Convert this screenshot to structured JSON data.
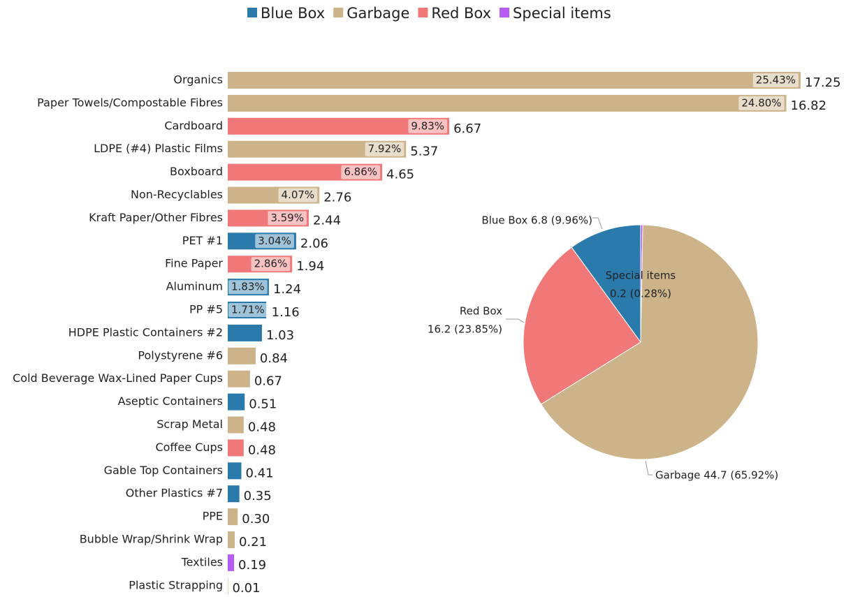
{
  "legend": [
    {
      "name": "Blue Box",
      "color": "#2a7aab"
    },
    {
      "name": "Garbage",
      "color": "#ccb38a"
    },
    {
      "name": "Red Box",
      "color": "#f07878"
    },
    {
      "name": "Special items",
      "color": "#b65cf5"
    }
  ],
  "chart_data": [
    {
      "type": "bar",
      "orientation": "horizontal",
      "categories": [
        "Organics",
        "Paper Towels/Compostable Fibres",
        "Cardboard",
        "LDPE (#4) Plastic Films",
        "Boxboard",
        "Non-Recyclables",
        "Kraft Paper/Other Fibres",
        "PET #1",
        "Fine Paper",
        "Aluminum",
        "PP #5",
        "HDPE Plastic Containers #2",
        "Polystyrene #6",
        "Cold Beverage Wax-Lined Paper Cups",
        "Aseptic Containers",
        "Scrap Metal",
        "Coffee Cups",
        "Gable Top Containers",
        "Other Plastics #7",
        "PPE",
        "Bubble Wrap/Shrink Wrap",
        "Textiles",
        "Plastic Strapping"
      ],
      "values": [
        17.25,
        16.82,
        6.67,
        5.37,
        4.65,
        2.76,
        2.44,
        2.06,
        1.94,
        1.24,
        1.16,
        1.03,
        0.84,
        0.67,
        0.51,
        0.48,
        0.48,
        0.41,
        0.35,
        0.3,
        0.21,
        0.19,
        0.01
      ],
      "value_labels": [
        "17.25",
        "16.82",
        "6.67",
        "5.37",
        "4.65",
        "2.76",
        "2.44",
        "2.06",
        "1.94",
        "1.24",
        "1.16",
        "1.03",
        "0.84",
        "0.67",
        "0.51",
        "0.48",
        "0.48",
        "0.41",
        "0.35",
        "0.30",
        "0.21",
        "0.19",
        "0.01"
      ],
      "share_labels": [
        "25.43%",
        "24.80%",
        "9.83%",
        "7.92%",
        "6.86%",
        "4.07%",
        "3.59%",
        "3.04%",
        "2.86%",
        "1.83%",
        "1.71%",
        null,
        null,
        null,
        null,
        null,
        null,
        null,
        null,
        null,
        null,
        null,
        null
      ],
      "colors": [
        "#ccb38a",
        "#ccb38a",
        "#f07878",
        "#ccb38a",
        "#f07878",
        "#ccb38a",
        "#f07878",
        "#2a7aab",
        "#f07878",
        "#2a7aab",
        "#2a7aab",
        "#2a7aab",
        "#ccb38a",
        "#ccb38a",
        "#2a7aab",
        "#ccb38a",
        "#f07878",
        "#2a7aab",
        "#2a7aab",
        "#ccb38a",
        "#ccb38a",
        "#b65cf5",
        "#ccb38a"
      ],
      "xlim": [
        0,
        17.25
      ]
    },
    {
      "type": "pie",
      "categories": [
        "Blue Box",
        "Special items",
        "Garbage",
        "Red Box"
      ],
      "values": [
        6.8,
        0.2,
        44.7,
        16.2
      ],
      "labels": [
        [
          "Blue Box 6.8 (9.96%)"
        ],
        [
          "Special items",
          "0.2 (0.28%)"
        ],
        [
          "Garbage 44.7 (65.92%)"
        ],
        [
          "Red Box",
          "16.2 (23.85%)"
        ]
      ],
      "colors": [
        "#2a7aab",
        "#b65cf5",
        "#ccb38a",
        "#f07878"
      ]
    }
  ]
}
